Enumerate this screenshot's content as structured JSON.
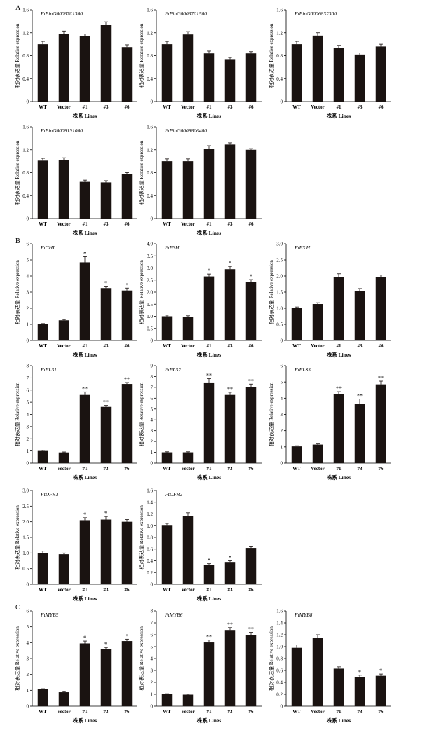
{
  "panel_labels": [
    "A",
    "B",
    "C"
  ],
  "chart_data": [
    {
      "type": "bar",
      "panel": "A",
      "title": "FtPinG0003701300",
      "ylabel": "相对表达量 Relative expression",
      "xlabel": "株系 Lines",
      "categories": [
        "WT",
        "Vector",
        "#1",
        "#3",
        "#6"
      ],
      "values": [
        1.0,
        1.18,
        1.14,
        1.34,
        0.95
      ],
      "errors": [
        0.05,
        0.05,
        0.04,
        0.05,
        0.04
      ],
      "significance": [
        "",
        "",
        "",
        "",
        ""
      ],
      "ylim": [
        0,
        1.6
      ],
      "yticks": [
        0,
        0.4,
        0.8,
        1.2,
        1.6
      ],
      "ytick_labels": [
        "0",
        "0.4",
        "0.8",
        "1.2",
        "1.6"
      ]
    },
    {
      "type": "bar",
      "panel": "A",
      "title": "FtPinG0003701500",
      "ylabel": "相对表达量 Relative expression",
      "xlabel": "株系 Lines",
      "categories": [
        "WT",
        "Vector",
        "#1",
        "#3",
        "#6"
      ],
      "values": [
        1.0,
        1.17,
        0.84,
        0.74,
        0.84
      ],
      "errors": [
        0.05,
        0.05,
        0.04,
        0.03,
        0.03
      ],
      "significance": [
        "",
        "",
        "",
        "",
        ""
      ],
      "ylim": [
        0,
        1.6
      ],
      "yticks": [
        0,
        0.4,
        0.8,
        1.2,
        1.6
      ],
      "ytick_labels": [
        "0",
        "0.4",
        "0.8",
        "1.2",
        "1.6"
      ]
    },
    {
      "type": "bar",
      "panel": "A",
      "title": "FtPinG0006832300",
      "ylabel": "相对表达量 Relative expression",
      "xlabel": "株系 Lines",
      "categories": [
        "WT",
        "Vector",
        "#1",
        "#3",
        "#6"
      ],
      "values": [
        1.0,
        1.15,
        0.94,
        0.82,
        0.96
      ],
      "errors": [
        0.05,
        0.05,
        0.04,
        0.03,
        0.04
      ],
      "significance": [
        "",
        "",
        "",
        "",
        ""
      ],
      "ylim": [
        0,
        1.6
      ],
      "yticks": [
        0,
        0.4,
        0.8,
        1.2,
        1.6
      ],
      "ytick_labels": [
        "0",
        "0.4",
        "0.8",
        "1.2",
        "1.6"
      ]
    },
    {
      "type": "bar",
      "panel": "A",
      "title": "FtPinG0008131000",
      "ylabel": "相对表达量 Relative expression",
      "xlabel": "株系 Lines",
      "categories": [
        "WT",
        "Vector",
        "#1",
        "#3",
        "#6"
      ],
      "values": [
        1.01,
        1.02,
        0.64,
        0.63,
        0.77
      ],
      "errors": [
        0.04,
        0.04,
        0.03,
        0.03,
        0.03
      ],
      "significance": [
        "",
        "",
        "",
        "",
        ""
      ],
      "ylim": [
        0,
        1.6
      ],
      "yticks": [
        0,
        0.4,
        0.8,
        1.2,
        1.6
      ],
      "ytick_labels": [
        "0",
        "0.4",
        "0.8",
        "1.2",
        "1.6"
      ]
    },
    {
      "type": "bar",
      "panel": "A",
      "title": "FtPinG0008806400",
      "ylabel": "相对表达量 Relative expression",
      "xlabel": "株系 Lines",
      "categories": [
        "WT",
        "Vector",
        "#1",
        "#3",
        "#6"
      ],
      "values": [
        1.0,
        1.0,
        1.22,
        1.29,
        1.2
      ],
      "errors": [
        0.04,
        0.04,
        0.05,
        0.03,
        0.02
      ],
      "significance": [
        "",
        "",
        "",
        "",
        ""
      ],
      "ylim": [
        0,
        1.6
      ],
      "yticks": [
        0,
        0.4,
        0.8,
        1.2,
        1.6
      ],
      "ytick_labels": [
        "0",
        "0.4",
        "0.8",
        "1.2",
        "1.6"
      ]
    },
    {
      "type": "bar",
      "panel": "B",
      "title": "FtCHI",
      "ylabel": "相对表达量 Relative expression",
      "xlabel": "株系 Lines",
      "categories": [
        "WT",
        "Vector",
        "#1",
        "#3",
        "#6"
      ],
      "values": [
        1.0,
        1.25,
        4.85,
        3.25,
        3.1
      ],
      "errors": [
        0.05,
        0.05,
        0.35,
        0.12,
        0.15
      ],
      "significance": [
        "",
        "",
        "*",
        "*",
        "*"
      ],
      "ylim": [
        0,
        6
      ],
      "yticks": [
        0,
        1,
        2,
        3,
        4,
        5,
        6
      ],
      "ytick_labels": [
        "0",
        "1",
        "2",
        "3",
        "4",
        "5",
        "6"
      ]
    },
    {
      "type": "bar",
      "panel": "B",
      "title": "FtF3H",
      "ylabel": "相对表达量 Relative expression",
      "xlabel": "株系 Lines",
      "categories": [
        "WT",
        "Vector",
        "#1",
        "#3",
        "#6"
      ],
      "values": [
        1.0,
        0.97,
        2.65,
        2.95,
        2.42
      ],
      "errors": [
        0.05,
        0.05,
        0.1,
        0.12,
        0.1
      ],
      "significance": [
        "",
        "",
        "*",
        "*",
        "*"
      ],
      "ylim": [
        0,
        4
      ],
      "yticks": [
        0,
        0.5,
        1,
        1.5,
        2,
        2.5,
        3,
        3.5,
        4
      ],
      "ytick_labels": [
        "0",
        "0.5",
        "1.0",
        "1.5",
        "2.0",
        "2.5",
        "3.0",
        "3.5",
        "4.0"
      ]
    },
    {
      "type": "bar",
      "panel": "B",
      "title": "FtF3'H",
      "ylabel": "相对表达量 Relative expression",
      "xlabel": "株系 Lines",
      "categories": [
        "WT",
        "Vector",
        "#1",
        "#3",
        "#6"
      ],
      "values": [
        1.0,
        1.13,
        1.97,
        1.53,
        1.97
      ],
      "errors": [
        0.04,
        0.04,
        0.1,
        0.08,
        0.06
      ],
      "significance": [
        "",
        "",
        "",
        "",
        ""
      ],
      "ylim": [
        0,
        3
      ],
      "yticks": [
        0,
        0.5,
        1,
        1.5,
        2,
        2.5,
        3
      ],
      "ytick_labels": [
        "0",
        "0.5",
        "1.0",
        "1.5",
        "2.0",
        "2.5",
        "3.0"
      ]
    },
    {
      "type": "bar",
      "panel": "B",
      "title": "FtFLS1",
      "ylabel": "相对表达量 Relative expression",
      "xlabel": "株系 Lines",
      "categories": [
        "WT",
        "Vector",
        "#1",
        "#3",
        "#6"
      ],
      "values": [
        1.0,
        0.88,
        5.6,
        4.62,
        6.5
      ],
      "errors": [
        0.05,
        0.04,
        0.25,
        0.12,
        0.12
      ],
      "significance": [
        "",
        "",
        "**",
        "**",
        "**"
      ],
      "ylim": [
        0,
        8
      ],
      "yticks": [
        0,
        1,
        2,
        3,
        4,
        5,
        6,
        7,
        8
      ],
      "ytick_labels": [
        "0",
        "1",
        "2",
        "3",
        "4",
        "5",
        "6",
        "7",
        "8"
      ]
    },
    {
      "type": "bar",
      "panel": "B",
      "title": "FtFLS2",
      "ylabel": "相对表达量 Relative expression",
      "xlabel": "株系 Lines",
      "categories": [
        "WT",
        "Vector",
        "#1",
        "#3",
        "#6"
      ],
      "values": [
        1.0,
        1.0,
        7.45,
        6.3,
        7.05
      ],
      "errors": [
        0.05,
        0.05,
        0.35,
        0.25,
        0.25
      ],
      "significance": [
        "",
        "",
        "**",
        "**",
        "**"
      ],
      "ylim": [
        0,
        9
      ],
      "yticks": [
        0,
        1,
        2,
        3,
        4,
        5,
        6,
        7,
        8,
        9
      ],
      "ytick_labels": [
        "0",
        "1",
        "2",
        "3",
        "4",
        "5",
        "6",
        "7",
        "8",
        "9"
      ]
    },
    {
      "type": "bar",
      "panel": "B",
      "title": "FtFLS3",
      "ylabel": "相对表达量 Relative expression",
      "xlabel": "株系 Lines",
      "categories": [
        "WT",
        "Vector",
        "#1",
        "#3",
        "#6"
      ],
      "values": [
        1.03,
        1.14,
        4.25,
        3.65,
        4.85
      ],
      "errors": [
        0.04,
        0.04,
        0.15,
        0.3,
        0.2
      ],
      "significance": [
        "",
        "",
        "**",
        "**",
        "**"
      ],
      "ylim": [
        0,
        6
      ],
      "yticks": [
        0,
        1,
        2,
        3,
        4,
        5,
        6
      ],
      "ytick_labels": [
        "0",
        "1",
        "2",
        "3",
        "4",
        "5",
        "6"
      ]
    },
    {
      "type": "bar",
      "panel": "B",
      "title": "FtDFR1",
      "ylabel": "相对表达量 Relative expression",
      "xlabel": "株系 Lines",
      "categories": [
        "WT",
        "Vector",
        "#1",
        "#3",
        "#6"
      ],
      "values": [
        1.0,
        0.96,
        2.05,
        2.07,
        2.0
      ],
      "errors": [
        0.06,
        0.04,
        0.08,
        0.1,
        0.07
      ],
      "significance": [
        "",
        "",
        "*",
        "*",
        ""
      ],
      "ylim": [
        0,
        3
      ],
      "yticks": [
        0,
        0.5,
        1,
        1.5,
        2,
        2.5,
        3
      ],
      "ytick_labels": [
        "0",
        "0.5",
        "1.0",
        "1.5",
        "2.0",
        "2.5",
        "3.0"
      ]
    },
    {
      "type": "bar",
      "panel": "B",
      "title": "FtDFR2",
      "ylabel": "相对表达量 Relative expression",
      "xlabel": "株系 Lines",
      "categories": [
        "WT",
        "Vector",
        "#1",
        "#3",
        "#6"
      ],
      "values": [
        1.0,
        1.16,
        0.33,
        0.38,
        0.62
      ],
      "errors": [
        0.04,
        0.06,
        0.02,
        0.02,
        0.02
      ],
      "significance": [
        "",
        "",
        "*",
        "*",
        ""
      ],
      "ylim": [
        0,
        1.6
      ],
      "yticks": [
        0,
        0.2,
        0.4,
        0.6,
        0.8,
        1,
        1.2,
        1.4,
        1.6
      ],
      "ytick_labels": [
        "0",
        "0.2",
        "0.4",
        "0.6",
        "0.8",
        "1.0",
        "1.2",
        "1.4",
        "1.6"
      ]
    },
    {
      "type": "bar",
      "panel": "C",
      "title": "FtMYB5",
      "ylabel": "相对表达量 Relative expression",
      "xlabel": "株系 Lines",
      "categories": [
        "WT",
        "Vector",
        "#1",
        "#3",
        "#6"
      ],
      "values": [
        1.06,
        0.88,
        3.95,
        3.6,
        4.1
      ],
      "errors": [
        0.04,
        0.04,
        0.15,
        0.1,
        0.12
      ],
      "significance": [
        "",
        "",
        "*",
        "*",
        "*"
      ],
      "ylim": [
        0,
        6
      ],
      "yticks": [
        0,
        1,
        2,
        3,
        4,
        5,
        6
      ],
      "ytick_labels": [
        "0",
        "1",
        "2",
        "3",
        "4",
        "5",
        "6"
      ]
    },
    {
      "type": "bar",
      "panel": "C",
      "title": "FtMYB6",
      "ylabel": "相对表达量 Relative expression",
      "xlabel": "株系 Lines",
      "categories": [
        "WT",
        "Vector",
        "#1",
        "#3",
        "#6"
      ],
      "values": [
        1.0,
        0.97,
        5.35,
        6.4,
        5.95
      ],
      "errors": [
        0.05,
        0.05,
        0.2,
        0.2,
        0.25
      ],
      "significance": [
        "",
        "",
        "**",
        "**",
        "**"
      ],
      "ylim": [
        0,
        8
      ],
      "yticks": [
        0,
        1,
        2,
        3,
        4,
        5,
        6,
        7,
        8
      ],
      "ytick_labels": [
        "0",
        "1",
        "2",
        "3",
        "4",
        "5",
        "6",
        "7",
        "8"
      ]
    },
    {
      "type": "bar",
      "panel": "C",
      "title": "FtMYB8",
      "ylabel": "相对表达量 Relative expression",
      "xlabel": "株系 Lines",
      "categories": [
        "WT",
        "Vector",
        "#1",
        "#3",
        "#6"
      ],
      "values": [
        0.98,
        1.15,
        0.63,
        0.49,
        0.51
      ],
      "errors": [
        0.05,
        0.05,
        0.03,
        0.03,
        0.03
      ],
      "significance": [
        "",
        "",
        "",
        "*",
        "*"
      ],
      "ylim": [
        0,
        1.6
      ],
      "yticks": [
        0,
        0.2,
        0.4,
        0.6,
        0.8,
        1,
        1.2,
        1.4,
        1.6
      ],
      "ytick_labels": [
        "0",
        "0.2",
        "0.4",
        "0.6",
        "0.8",
        "1.0",
        "1.2",
        "1.4",
        "1.6"
      ]
    }
  ]
}
